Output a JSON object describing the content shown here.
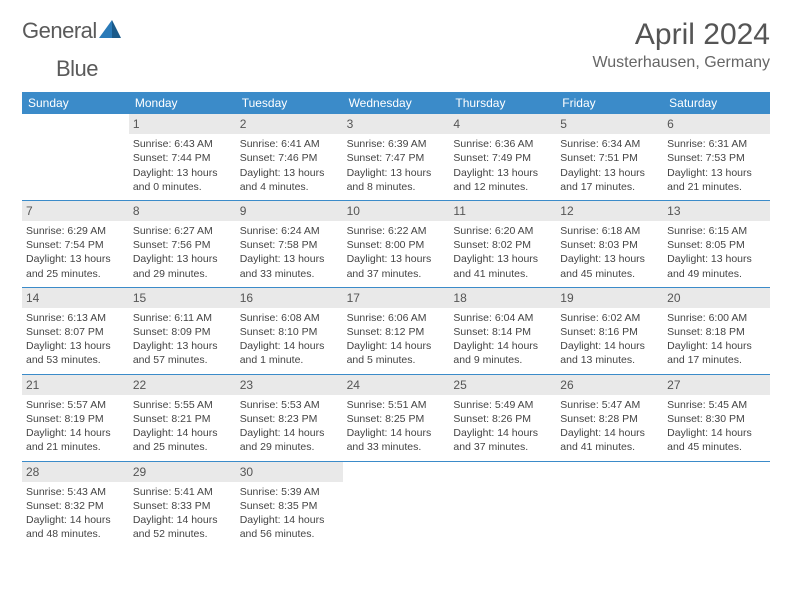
{
  "logo": {
    "text1": "General",
    "text2": "Blue"
  },
  "title": "April 2024",
  "location": "Wusterhausen, Germany",
  "colors": {
    "header_bg": "#3b8bc9",
    "header_text": "#ffffff",
    "daynum_bg": "#e9e9e9",
    "border": "#3b8bc9",
    "body_text": "#444444",
    "title_text": "#555555",
    "logo_gray": "#5a5a5a",
    "logo_blue": "#2a7ab8"
  },
  "weekdays": [
    "Sunday",
    "Monday",
    "Tuesday",
    "Wednesday",
    "Thursday",
    "Friday",
    "Saturday"
  ],
  "start_offset": 1,
  "days": [
    {
      "n": 1,
      "sunrise": "6:43 AM",
      "sunset": "7:44 PM",
      "daylight": "13 hours and 0 minutes."
    },
    {
      "n": 2,
      "sunrise": "6:41 AM",
      "sunset": "7:46 PM",
      "daylight": "13 hours and 4 minutes."
    },
    {
      "n": 3,
      "sunrise": "6:39 AM",
      "sunset": "7:47 PM",
      "daylight": "13 hours and 8 minutes."
    },
    {
      "n": 4,
      "sunrise": "6:36 AM",
      "sunset": "7:49 PM",
      "daylight": "13 hours and 12 minutes."
    },
    {
      "n": 5,
      "sunrise": "6:34 AM",
      "sunset": "7:51 PM",
      "daylight": "13 hours and 17 minutes."
    },
    {
      "n": 6,
      "sunrise": "6:31 AM",
      "sunset": "7:53 PM",
      "daylight": "13 hours and 21 minutes."
    },
    {
      "n": 7,
      "sunrise": "6:29 AM",
      "sunset": "7:54 PM",
      "daylight": "13 hours and 25 minutes."
    },
    {
      "n": 8,
      "sunrise": "6:27 AM",
      "sunset": "7:56 PM",
      "daylight": "13 hours and 29 minutes."
    },
    {
      "n": 9,
      "sunrise": "6:24 AM",
      "sunset": "7:58 PM",
      "daylight": "13 hours and 33 minutes."
    },
    {
      "n": 10,
      "sunrise": "6:22 AM",
      "sunset": "8:00 PM",
      "daylight": "13 hours and 37 minutes."
    },
    {
      "n": 11,
      "sunrise": "6:20 AM",
      "sunset": "8:02 PM",
      "daylight": "13 hours and 41 minutes."
    },
    {
      "n": 12,
      "sunrise": "6:18 AM",
      "sunset": "8:03 PM",
      "daylight": "13 hours and 45 minutes."
    },
    {
      "n": 13,
      "sunrise": "6:15 AM",
      "sunset": "8:05 PM",
      "daylight": "13 hours and 49 minutes."
    },
    {
      "n": 14,
      "sunrise": "6:13 AM",
      "sunset": "8:07 PM",
      "daylight": "13 hours and 53 minutes."
    },
    {
      "n": 15,
      "sunrise": "6:11 AM",
      "sunset": "8:09 PM",
      "daylight": "13 hours and 57 minutes."
    },
    {
      "n": 16,
      "sunrise": "6:08 AM",
      "sunset": "8:10 PM",
      "daylight": "14 hours and 1 minute."
    },
    {
      "n": 17,
      "sunrise": "6:06 AM",
      "sunset": "8:12 PM",
      "daylight": "14 hours and 5 minutes."
    },
    {
      "n": 18,
      "sunrise": "6:04 AM",
      "sunset": "8:14 PM",
      "daylight": "14 hours and 9 minutes."
    },
    {
      "n": 19,
      "sunrise": "6:02 AM",
      "sunset": "8:16 PM",
      "daylight": "14 hours and 13 minutes."
    },
    {
      "n": 20,
      "sunrise": "6:00 AM",
      "sunset": "8:18 PM",
      "daylight": "14 hours and 17 minutes."
    },
    {
      "n": 21,
      "sunrise": "5:57 AM",
      "sunset": "8:19 PM",
      "daylight": "14 hours and 21 minutes."
    },
    {
      "n": 22,
      "sunrise": "5:55 AM",
      "sunset": "8:21 PM",
      "daylight": "14 hours and 25 minutes."
    },
    {
      "n": 23,
      "sunrise": "5:53 AM",
      "sunset": "8:23 PM",
      "daylight": "14 hours and 29 minutes."
    },
    {
      "n": 24,
      "sunrise": "5:51 AM",
      "sunset": "8:25 PM",
      "daylight": "14 hours and 33 minutes."
    },
    {
      "n": 25,
      "sunrise": "5:49 AM",
      "sunset": "8:26 PM",
      "daylight": "14 hours and 37 minutes."
    },
    {
      "n": 26,
      "sunrise": "5:47 AM",
      "sunset": "8:28 PM",
      "daylight": "14 hours and 41 minutes."
    },
    {
      "n": 27,
      "sunrise": "5:45 AM",
      "sunset": "8:30 PM",
      "daylight": "14 hours and 45 minutes."
    },
    {
      "n": 28,
      "sunrise": "5:43 AM",
      "sunset": "8:32 PM",
      "daylight": "14 hours and 48 minutes."
    },
    {
      "n": 29,
      "sunrise": "5:41 AM",
      "sunset": "8:33 PM",
      "daylight": "14 hours and 52 minutes."
    },
    {
      "n": 30,
      "sunrise": "5:39 AM",
      "sunset": "8:35 PM",
      "daylight": "14 hours and 56 minutes."
    }
  ],
  "labels": {
    "sunrise": "Sunrise:",
    "sunset": "Sunset:",
    "daylight": "Daylight:"
  }
}
